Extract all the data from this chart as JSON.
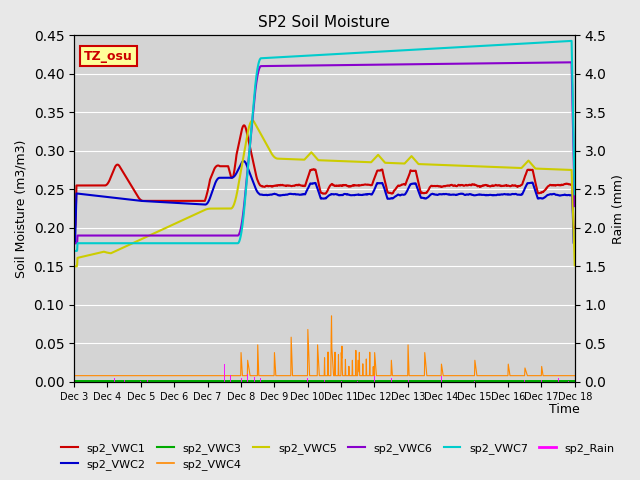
{
  "title": "SP2 Soil Moisture",
  "ylabel_left": "Soil Moisture (m3/m3)",
  "ylabel_right": "Raim (mm)",
  "xlabel": "Time",
  "ylim_left": [
    0.0,
    0.45
  ],
  "ylim_right": [
    0.0,
    4.5
  ],
  "bg_color": "#e8e8e8",
  "plot_bg_color": "#d4d4d4",
  "annotation_text": "TZ_osu",
  "annotation_bg": "#ffff99",
  "annotation_border": "#cc0000",
  "x_tick_labels": [
    "Dec 3",
    "Dec 4",
    "Dec 5",
    "Dec 6",
    "Dec 7",
    "Dec 8",
    "Dec 9",
    "Dec 10",
    "Dec 11",
    "Dec 12",
    "Dec 13",
    "Dec 14",
    "Dec 15",
    "Dec 16",
    "Dec 17",
    "Dec 18"
  ],
  "vwc1_color": "#cc0000",
  "vwc2_color": "#0000cc",
  "vwc3_color": "#00aa00",
  "vwc4_color": "#ff8800",
  "vwc5_color": "#cccc00",
  "vwc6_color": "#8800cc",
  "vwc7_color": "#00cccc",
  "rain_color": "#ff00ff"
}
